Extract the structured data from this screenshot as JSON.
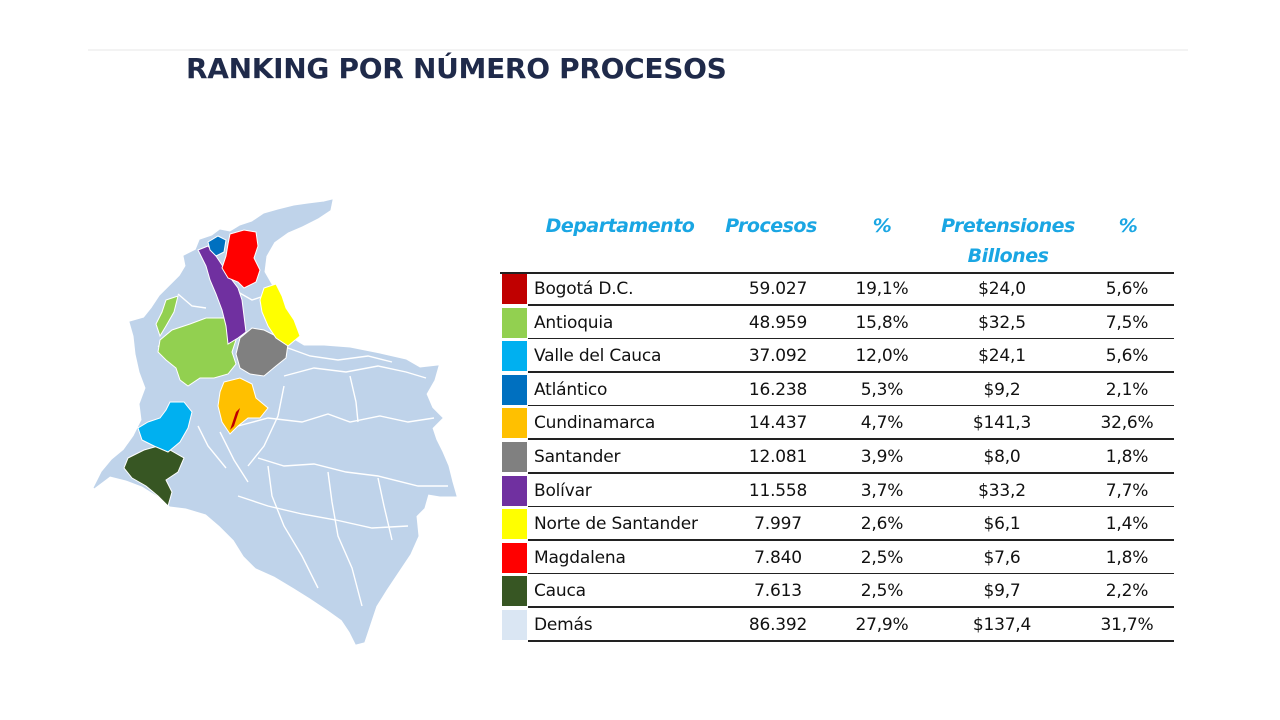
{
  "title": "RANKING POR NÚMERO PROCESOS",
  "table": {
    "headers": {
      "departamento": "Departamento",
      "procesos": "Procesos",
      "pct_procesos": "%",
      "pretensiones_line1": "Pretensiones",
      "pretensiones_line2": "Billones",
      "pct_pretensiones": "%"
    },
    "rows": [
      {
        "name": "Bogotá D.C.",
        "procesos": "59.027",
        "pct": "19,1%",
        "pretensiones": "$24,0",
        "pct2": "5,6%",
        "color": "#c00000"
      },
      {
        "name": "Antioquia",
        "procesos": "48.959",
        "pct": "15,8%",
        "pretensiones": "$32,5",
        "pct2": "7,5%",
        "color": "#92d050"
      },
      {
        "name": "Valle del Cauca",
        "procesos": "37.092",
        "pct": "12,0%",
        "pretensiones": "$24,1",
        "pct2": "5,6%",
        "color": "#00b0f0"
      },
      {
        "name": "Atlántico",
        "procesos": "16.238",
        "pct": "5,3%",
        "pretensiones": "$9,2",
        "pct2": "2,1%",
        "color": "#0070c0"
      },
      {
        "name": "Cundinamarca",
        "procesos": "14.437",
        "pct": "4,7%",
        "pretensiones": "$141,3",
        "pct2": "32,6%",
        "color": "#ffc000"
      },
      {
        "name": "Santander",
        "procesos": "12.081",
        "pct": "3,9%",
        "pretensiones": "$8,0",
        "pct2": "1,8%",
        "color": "#808080"
      },
      {
        "name": "Bolívar",
        "procesos": "11.558",
        "pct": "3,7%",
        "pretensiones": "$33,2",
        "pct2": "7,7%",
        "color": "#7030a0"
      },
      {
        "name": "Norte de Santander",
        "procesos": "7.997",
        "pct": "2,6%",
        "pretensiones": "$6,1",
        "pct2": "1,4%",
        "color": "#ffff00"
      },
      {
        "name": "Magdalena",
        "procesos": "7.840",
        "pct": "2,5%",
        "pretensiones": "$7,6",
        "pct2": "1,8%",
        "color": "#ff0000"
      },
      {
        "name": "Cauca",
        "procesos": "7.613",
        "pct": "2,5%",
        "pretensiones": "$9,7",
        "pct2": "2,2%",
        "color": "#375623"
      },
      {
        "name": "Demás",
        "procesos": "86.392",
        "pct": "27,9%",
        "pretensiones": "$137,4",
        "pct2": "31,7%",
        "color": "#dae6f3"
      }
    ]
  },
  "map": {
    "base_color": "#bfd3ea",
    "border_color": "#ffffff"
  }
}
